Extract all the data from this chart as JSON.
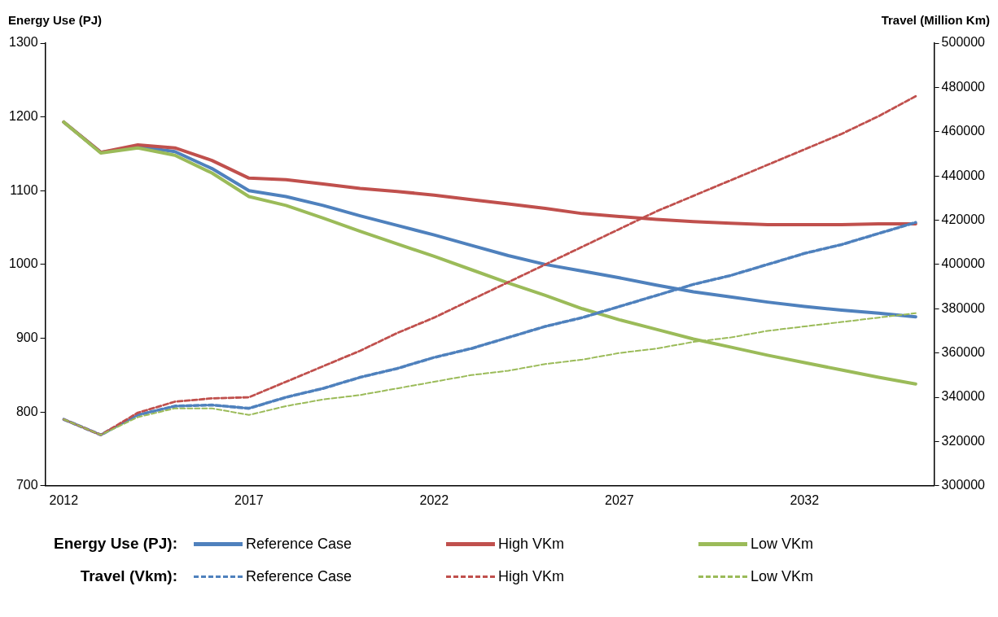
{
  "chart_data": {
    "type": "line",
    "ylabel": "Energy Use (PJ)",
    "y2label": "Travel (Million Km)",
    "categories": [
      "2012",
      null,
      null,
      null,
      null,
      "2017",
      null,
      null,
      null,
      null,
      "2022",
      null,
      null,
      null,
      null,
      "2027",
      null,
      null,
      null,
      null,
      "2032",
      null,
      null,
      null
    ],
    "ylim": [
      700,
      1300
    ],
    "yticks": [
      700,
      800,
      900,
      1000,
      1100,
      1200,
      1300
    ],
    "y2lim": [
      300000,
      500000
    ],
    "y2ticks": [
      300000,
      320000,
      340000,
      360000,
      380000,
      400000,
      420000,
      440000,
      460000,
      480000,
      500000
    ],
    "grid": false,
    "legend": "bottom",
    "marker": "none",
    "annotations": [
      "Energy Use (PJ):",
      "Travel (Vkm):"
    ],
    "series": [
      {
        "name": "Reference Case",
        "color": "#4f81bd",
        "line_style": "solid",
        "values": [
          1193,
          1152,
          1160,
          1153,
          1130,
          1100,
          1092,
          1080,
          1066,
          1053,
          1040,
          1026,
          1012,
          1000,
          991,
          982,
          972,
          963,
          956,
          949,
          943,
          938,
          934,
          929
        ]
      },
      {
        "name": "High VKm",
        "color": "#c0504d",
        "line_style": "solid",
        "values": [
          1193,
          1152,
          1162,
          1158,
          1141,
          1117,
          1115,
          1109,
          1103,
          1099,
          1094,
          1088,
          1082,
          1076,
          1069,
          1065,
          1061,
          1058,
          1056,
          1054,
          1054,
          1054,
          1055,
          1055
        ]
      },
      {
        "name": "Low VKm",
        "color": "#9bbb59",
        "line_style": "solid",
        "values": [
          1193,
          1151,
          1158,
          1148,
          1124,
          1092,
          1080,
          1063,
          1045,
          1028,
          1011,
          993,
          975,
          958,
          940,
          925,
          912,
          899,
          888,
          877,
          867,
          857,
          847,
          838
        ]
      },
      {
        "name": "Reference Case",
        "color": "#4f81bd",
        "line_style": "dashed",
        "axis": "y2",
        "values": [
          330000,
          323000,
          332000,
          336000,
          336500,
          335000,
          340000,
          344000,
          349000,
          353000,
          358000,
          362000,
          367000,
          372000,
          376000,
          381000,
          386000,
          391000,
          395000,
          400000,
          405000,
          409000,
          414000,
          419000
        ]
      },
      {
        "name": "High VKm",
        "color": "#c0504d",
        "line_style": "dashed",
        "axis": "y2",
        "values": [
          330000,
          323000,
          333000,
          338000,
          339500,
          340000,
          347000,
          354000,
          361000,
          369000,
          376000,
          384000,
          392000,
          400000,
          408000,
          416000,
          424000,
          431000,
          438000,
          445000,
          452000,
          459000,
          467000,
          476000
        ]
      },
      {
        "name": "Low VKm",
        "color": "#9bbb59",
        "line_style": "dashed",
        "axis": "y2",
        "values": [
          330000,
          323000,
          331000,
          335000,
          335000,
          332000,
          336000,
          339000,
          341000,
          344000,
          347000,
          350000,
          352000,
          355000,
          357000,
          360000,
          362000,
          365000,
          367000,
          370000,
          372000,
          374000,
          376000,
          378000
        ]
      }
    ]
  }
}
